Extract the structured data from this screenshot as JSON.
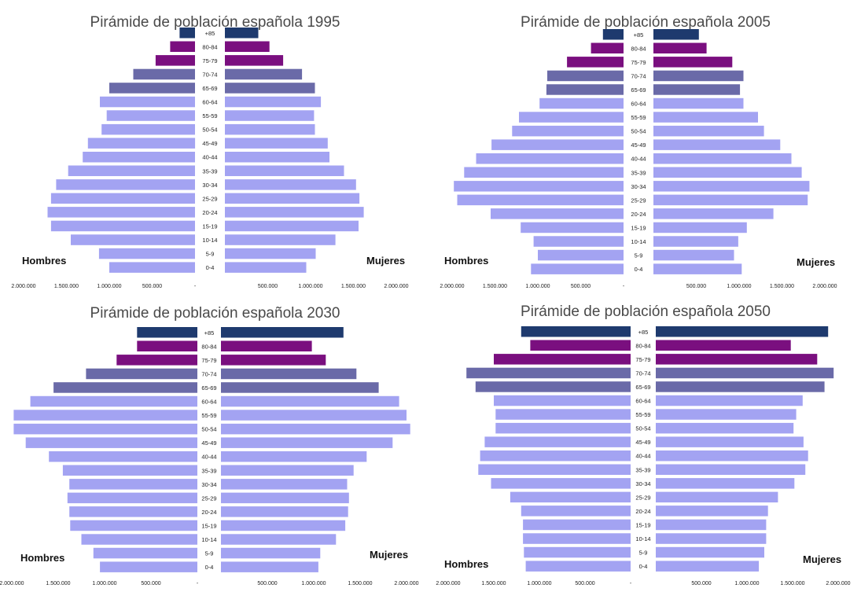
{
  "colors": {
    "top": "#1e3a6e",
    "old": "#7a0f7f",
    "mid": "#6a6aa8",
    "base": "#a3a3f2"
  },
  "chart_data": [
    {
      "type": "bar",
      "title": "Pirámide de población española 1995",
      "left_label": "Hombres",
      "right_label": "Mujeres",
      "categories": [
        "+85",
        "80-84",
        "75-79",
        "70-74",
        "65-69",
        "60-64",
        "55-59",
        "50-54",
        "45-49",
        "40-44",
        "35-39",
        "30-34",
        "25-29",
        "20-24",
        "15-19",
        "10-14",
        "5-9",
        "0-4"
      ],
      "tick_labels_left": [
        "2.000.000",
        "1.500.000",
        "1.000.000",
        "500.000",
        "-"
      ],
      "tick_labels_right": [
        "500.000",
        "1.000.000",
        "1.500.000",
        "2.000.000"
      ],
      "xlim": [
        0,
        2000000
      ],
      "series": [
        {
          "name": "Hombres",
          "values": [
            180000,
            290000,
            460000,
            720000,
            1000000,
            1110000,
            1030000,
            1090000,
            1250000,
            1310000,
            1480000,
            1620000,
            1680000,
            1720000,
            1680000,
            1450000,
            1120000,
            1000000
          ]
        },
        {
          "name": "Mujeres",
          "values": [
            390000,
            520000,
            680000,
            900000,
            1050000,
            1120000,
            1040000,
            1050000,
            1200000,
            1220000,
            1390000,
            1530000,
            1570000,
            1620000,
            1560000,
            1290000,
            1060000,
            950000
          ]
        }
      ]
    },
    {
      "type": "bar",
      "title": "Pirámide de población española 2005",
      "left_label": "Hombres",
      "right_label": "Mujeres",
      "categories": [
        "+85",
        "80-84",
        "75-79",
        "70-74",
        "65-69",
        "60-64",
        "55-59",
        "50-54",
        "45-49",
        "40-44",
        "35-39",
        "30-34",
        "25-29",
        "20-24",
        "15-19",
        "10-14",
        "5-9",
        "0-4"
      ],
      "tick_labels_left": [
        "2.000.000",
        "1.500.000",
        "1.000.000",
        "500.000",
        "-"
      ],
      "tick_labels_right": [
        "500.000",
        "1.000.000",
        "1.500.000",
        "2.000.000"
      ],
      "xlim": [
        0,
        2000000
      ],
      "series": [
        {
          "name": "Hombres",
          "values": [
            240000,
            380000,
            660000,
            890000,
            900000,
            980000,
            1220000,
            1300000,
            1540000,
            1720000,
            1860000,
            1980000,
            1940000,
            1550000,
            1200000,
            1050000,
            1000000,
            1080000
          ]
        },
        {
          "name": "Mujeres",
          "values": [
            530000,
            620000,
            920000,
            1050000,
            1010000,
            1050000,
            1220000,
            1290000,
            1480000,
            1610000,
            1730000,
            1820000,
            1800000,
            1400000,
            1090000,
            990000,
            940000,
            1030000
          ]
        }
      ]
    },
    {
      "type": "bar",
      "title": "Pirámide de población española 2030",
      "left_label": "Hombres",
      "right_label": "Mujeres",
      "categories": [
        "+85",
        "80-84",
        "75-79",
        "70-74",
        "65-69",
        "60-64",
        "55-59",
        "50-54",
        "45-49",
        "40-44",
        "35-39",
        "30-34",
        "25-29",
        "20-24",
        "15-19",
        "10-14",
        "5-9",
        "0-4"
      ],
      "tick_labels_left": [
        "2.000.000",
        "1.500.000",
        "1.000.000",
        "500.000",
        "-"
      ],
      "tick_labels_right": [
        "500.000",
        "1.000.000",
        "1.500.000",
        "2.000.000"
      ],
      "xlim": [
        0,
        2000000
      ],
      "series": [
        {
          "name": "Hombres",
          "values": [
            650000,
            650000,
            870000,
            1200000,
            1550000,
            1800000,
            1980000,
            1980000,
            1850000,
            1600000,
            1450000,
            1380000,
            1400000,
            1380000,
            1370000,
            1250000,
            1120000,
            1050000
          ]
        },
        {
          "name": "Mujeres",
          "values": [
            1320000,
            980000,
            1130000,
            1460000,
            1700000,
            1920000,
            2000000,
            2040000,
            1850000,
            1570000,
            1430000,
            1360000,
            1380000,
            1370000,
            1340000,
            1240000,
            1070000,
            1050000
          ]
        }
      ]
    },
    {
      "type": "bar",
      "title": "Pirámide de población española 2050",
      "left_label": "Hombres",
      "right_label": "Mujeres",
      "categories": [
        "+85",
        "80-84",
        "75-79",
        "70-74",
        "65-69",
        "60-64",
        "55-59",
        "50-54",
        "45-49",
        "40-44",
        "35-39",
        "30-34",
        "25-29",
        "20-24",
        "15-19",
        "10-14",
        "5-9",
        "0-4"
      ],
      "tick_labels_left": [
        "2.000.000",
        "1.500.000",
        "1.000.000",
        "500.000",
        "-"
      ],
      "tick_labels_right": [
        "500.000",
        "1.000.000",
        "1.500.000",
        "2.000.000"
      ],
      "xlim": [
        0,
        2000000
      ],
      "series": [
        {
          "name": "Hombres",
          "values": [
            1200000,
            1100000,
            1500000,
            1800000,
            1700000,
            1500000,
            1480000,
            1480000,
            1600000,
            1650000,
            1670000,
            1530000,
            1320000,
            1200000,
            1180000,
            1180000,
            1170000,
            1150000
          ]
        },
        {
          "name": "Mujeres",
          "values": [
            1890000,
            1480000,
            1770000,
            1950000,
            1850000,
            1610000,
            1540000,
            1510000,
            1620000,
            1670000,
            1640000,
            1520000,
            1340000,
            1230000,
            1210000,
            1210000,
            1190000,
            1130000
          ]
        }
      ]
    }
  ]
}
